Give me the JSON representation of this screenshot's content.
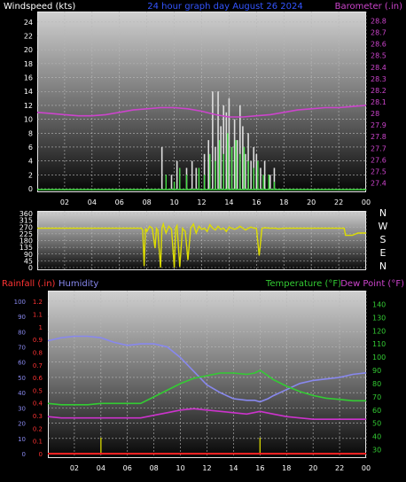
{
  "chart_data": [
    {
      "type": "line",
      "title": "24 hour graph day   August 26 2024",
      "ylabel": "Windspeed (kts)",
      "ylabel_right": "Barometer (.in)",
      "ylim": [
        0,
        25
      ],
      "yticks": [
        0,
        2,
        4,
        6,
        8,
        10,
        12,
        14,
        16,
        18,
        20,
        22,
        24
      ],
      "y2lim": [
        27.35,
        28.85
      ],
      "y2ticks": [
        "27.4",
        "27.5",
        "27.6",
        "27.7",
        "27.8",
        "27.9",
        "28",
        "28.1",
        "28.2",
        "28.3",
        "28.4",
        "28.5",
        "28.6",
        "28.7",
        "28.8"
      ],
      "xticks": [
        "02",
        "04",
        "06",
        "08",
        "10",
        "12",
        "14",
        "16",
        "18",
        "20",
        "22",
        "00"
      ],
      "grid": true,
      "series": [
        {
          "name": "Barometer",
          "color": "#cc44cc",
          "x": [
            0,
            1,
            2,
            3,
            4,
            5,
            6,
            7,
            8,
            9,
            10,
            11,
            12,
            13,
            14,
            15,
            16,
            17,
            18,
            19,
            20,
            21,
            22,
            23,
            24
          ],
          "values": [
            28.01,
            28.0,
            27.99,
            27.98,
            27.98,
            27.99,
            28.01,
            28.03,
            28.04,
            28.05,
            28.05,
            28.04,
            28.02,
            27.99,
            27.97,
            27.97,
            27.98,
            27.99,
            28.01,
            28.03,
            28.04,
            28.05,
            28.05,
            28.06,
            28.07
          ]
        },
        {
          "name": "Gust",
          "color": "#dddddd",
          "x": [
            0,
            8.9,
            9.1,
            9.4,
            9.8,
            10.2,
            10.5,
            10.9,
            11.3,
            11.6,
            11.9,
            12.2,
            12.5,
            12.8,
            13.0,
            13.2,
            13.4,
            13.6,
            13.8,
            14.0,
            14.2,
            14.4,
            14.6,
            14.8,
            15.0,
            15.2,
            15.4,
            15.6,
            15.8,
            16.0,
            16.3,
            16.6,
            17.0,
            17.3,
            17.6,
            24
          ],
          "values": [
            0,
            0,
            6,
            0,
            2,
            4,
            0,
            3,
            4,
            3,
            0,
            5,
            7,
            14,
            6,
            14,
            9,
            12,
            11,
            13,
            6,
            10,
            7,
            12,
            9,
            5,
            8,
            4,
            6,
            5,
            3,
            4,
            2,
            3,
            0,
            0
          ]
        },
        {
          "name": "Windspeed",
          "color": "#44dd44",
          "x": [
            0,
            9.0,
            9.4,
            10.0,
            10.4,
            10.9,
            11.3,
            11.8,
            12.2,
            12.6,
            13.0,
            13.3,
            13.6,
            13.9,
            14.2,
            14.5,
            14.8,
            15.1,
            15.4,
            15.8,
            16.1,
            16.5,
            16.9,
            17.3,
            17.6,
            24
          ],
          "values": [
            0,
            0,
            2,
            1,
            3,
            2,
            0,
            3,
            2,
            5,
            4,
            7,
            5,
            8,
            6,
            7,
            5,
            6,
            4,
            3,
            4,
            2,
            2,
            1,
            0,
            0
          ]
        }
      ]
    },
    {
      "type": "line",
      "ylabel_right_letters": [
        "N",
        "W",
        "S",
        "E",
        "N"
      ],
      "ylim": [
        0,
        360
      ],
      "yticks": [
        0,
        45,
        90,
        135,
        180,
        225,
        270,
        315,
        360
      ],
      "grid": true,
      "series": [
        {
          "name": "Wind Direction",
          "color": "#dddd00",
          "x": [
            0,
            7.6,
            7.7,
            7.8,
            7.9,
            8.0,
            8.2,
            8.4,
            8.6,
            8.7,
            8.8,
            9.0,
            9.1,
            9.2,
            9.4,
            9.6,
            9.8,
            10.0,
            10.1,
            10.2,
            10.4,
            10.6,
            10.8,
            11.0,
            11.2,
            11.4,
            11.6,
            11.8,
            12.0,
            12.2,
            12.4,
            12.6,
            12.8,
            13.0,
            13.2,
            13.4,
            13.6,
            13.8,
            14.0,
            14.2,
            14.4,
            14.6,
            14.8,
            15.0,
            15.2,
            15.4,
            15.6,
            15.8,
            16.0,
            16.2,
            16.4,
            16.6,
            17.0,
            17.4,
            17.6,
            18.0,
            22.4,
            22.5,
            23.0,
            23.4,
            24
          ],
          "values": [
            262,
            262,
            250,
            10,
            262,
            240,
            275,
            262,
            130,
            262,
            250,
            0,
            262,
            290,
            230,
            275,
            255,
            0,
            262,
            280,
            5,
            262,
            240,
            50,
            262,
            290,
            230,
            275,
            255,
            262,
            240,
            285,
            262,
            250,
            275,
            255,
            262,
            240,
            270,
            262,
            255,
            262,
            275,
            262,
            250,
            262,
            270,
            262,
            262,
            80,
            262,
            265,
            262,
            262,
            258,
            262,
            262,
            215,
            215,
            230,
            230
          ]
        }
      ]
    },
    {
      "type": "line",
      "ylabel": "Rainfall (.in)",
      "ylabel2": "Humidity",
      "ylabel_right": "Temperature (°F)",
      "ylabel_right2": "Dew Point (°F)",
      "rain_ticks": [
        "0",
        "0.1",
        "0.2",
        "0.3",
        "0.4",
        "0.5",
        "0.6",
        "0.7",
        "0.8",
        "0.9",
        "1",
        "1.1",
        "1.2"
      ],
      "humidity_ticks": [
        0,
        10,
        20,
        30,
        40,
        50,
        60,
        70,
        80,
        90,
        100
      ],
      "temp_ticks": [
        30,
        40,
        50,
        60,
        70,
        80,
        90,
        100,
        110,
        120,
        130,
        140
      ],
      "rain_ylim": [
        0,
        1.25
      ],
      "humidity_ylim": [
        0,
        104
      ],
      "temp_ylim": [
        27,
        147
      ],
      "xticks": [
        "02",
        "04",
        "06",
        "08",
        "10",
        "12",
        "14",
        "16",
        "18",
        "20",
        "22",
        "00"
      ],
      "grid": true,
      "series": [
        {
          "name": "Humidity",
          "color": "#8888ee",
          "x": [
            0,
            1,
            2,
            3,
            4,
            5,
            6,
            7,
            8,
            9,
            10,
            11,
            12,
            13,
            14,
            15,
            15.6,
            16,
            16.6,
            17,
            18,
            19,
            20,
            21,
            22,
            23,
            24
          ],
          "values": [
            74,
            76,
            77,
            77,
            76,
            73,
            71,
            72,
            72,
            70,
            63,
            54,
            45,
            40,
            36,
            35,
            35,
            34,
            36,
            38,
            42,
            46,
            48,
            49,
            50,
            52,
            53
          ]
        },
        {
          "name": "Temperature",
          "color": "#33cc33",
          "x": [
            0,
            1,
            2,
            3,
            4,
            5,
            6,
            7,
            8,
            9,
            10,
            11,
            12,
            13,
            14,
            15,
            15.6,
            16,
            16.6,
            17,
            18,
            19,
            20,
            21,
            22,
            23,
            24
          ],
          "values": [
            65,
            64,
            64,
            64,
            65,
            65,
            65,
            65,
            70,
            75,
            80,
            84,
            86,
            88,
            88,
            87,
            88,
            90,
            86,
            83,
            78,
            74,
            71,
            69,
            68,
            67,
            67
          ]
        },
        {
          "name": "Dew Point",
          "color": "#cc33cc",
          "x": [
            0,
            1,
            2,
            3,
            4,
            5,
            6,
            7,
            8,
            9,
            10,
            11,
            12,
            13,
            14,
            15,
            16,
            17,
            18,
            19,
            20,
            21,
            22,
            23,
            24
          ],
          "values": [
            55,
            54,
            54,
            54,
            54,
            54,
            54,
            54,
            56,
            58,
            60,
            61,
            60,
            59,
            58,
            57,
            59,
            57,
            55,
            54,
            53,
            53,
            53,
            53,
            53
          ]
        },
        {
          "name": "Rainfall",
          "color": "#ff2222",
          "x": [
            0,
            24
          ],
          "values": [
            0,
            0
          ]
        }
      ],
      "markers_color": "#cccc00",
      "markers_x": [
        4.0,
        16.0
      ]
    }
  ]
}
